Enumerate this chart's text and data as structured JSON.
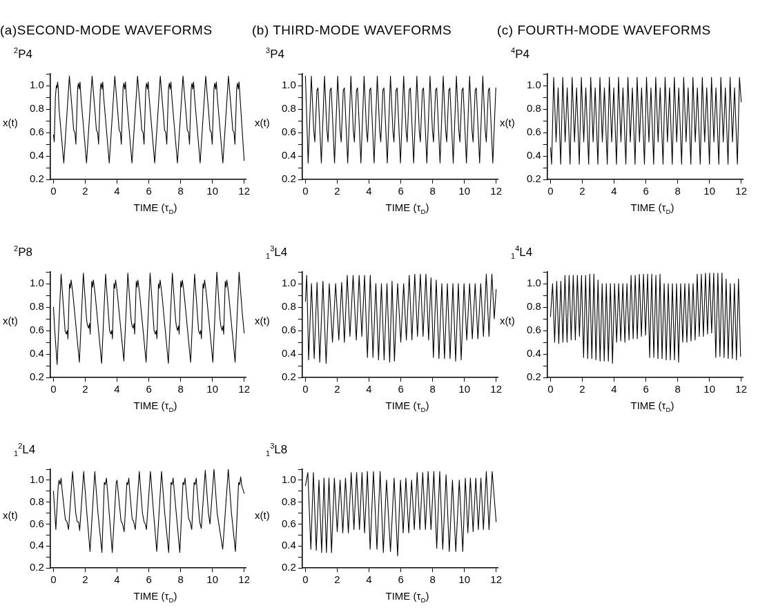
{
  "chart_data": [
    {
      "type": "line",
      "title": "(a)SECOND-MODE WAVEFORMS",
      "subtitle": "$^{2}$P4",
      "xlabel": "TIME (τ$_{D}$)",
      "ylabel": "x(t)",
      "xlim": [
        -0.2,
        12.1
      ],
      "ylim": [
        0.2,
        1.1
      ],
      "xticks": [
        0,
        2,
        4,
        6,
        8,
        10,
        12
      ],
      "yticks": [
        {
          "value": 0.2,
          "label": "0.2"
        },
        {
          "value": 0.3,
          "label": null
        },
        {
          "value": 0.4,
          "label": "0.4"
        },
        {
          "value": 0.5,
          "label": null
        },
        {
          "value": 0.6,
          "label": "0.6"
        },
        {
          "value": 0.7,
          "label": null
        },
        {
          "value": 0.8,
          "label": "0.8"
        },
        {
          "value": 0.9,
          "label": null
        },
        {
          "value": 1.0,
          "label": "1.0"
        },
        {
          "value": 1.1,
          "label": null
        }
      ],
      "series": [
        {
          "color": "#000000",
          "x": [
            0,
            0.05,
            0.12,
            0.18,
            0.22,
            0.26,
            0.3,
            0.35,
            0.65,
            1.0,
            1.2,
            1.27,
            1.35,
            1.41,
            1.52,
            1.57,
            1.62,
            1.67,
            1.73,
            2.08,
            2.43,
            2.63,
            2.7,
            2.78,
            2.84,
            2.95,
            3.0,
            3.05,
            3.1,
            3.16,
            3.51,
            3.86,
            4.06,
            4.13,
            4.21,
            4.27,
            4.38,
            4.43,
            4.48,
            4.53,
            4.59,
            4.94,
            5.29,
            5.49,
            5.56,
            5.64,
            5.7,
            5.81,
            5.86,
            5.91,
            5.96,
            6.02,
            6.37,
            6.72,
            6.92,
            6.99,
            7.07,
            7.13,
            7.24,
            7.29,
            7.34,
            7.39,
            7.45,
            7.8,
            8.15,
            8.35,
            8.42,
            8.5,
            8.56,
            8.67,
            8.72,
            8.77,
            8.82,
            8.88,
            9.23,
            9.58,
            9.78,
            9.85,
            9.93,
            9.99,
            10.1,
            10.15,
            10.2,
            10.25,
            10.31,
            10.66,
            11.01,
            11.21,
            11.28,
            11.36,
            11.42,
            11.53,
            11.58,
            11.63,
            11.68,
            11.74,
            12.0
          ],
          "values": [
            0.58,
            0.52,
            0.9,
            1.0,
            0.98,
            1.03,
            0.98,
            0.8,
            0.34,
            1.08,
            0.75,
            0.62,
            0.6,
            0.5,
            0.98,
            1.02,
            0.97,
            1.03,
            0.9,
            0.34,
            1.08,
            0.75,
            0.62,
            0.6,
            0.5,
            0.98,
            1.02,
            0.97,
            1.03,
            0.9,
            0.34,
            1.08,
            0.75,
            0.62,
            0.6,
            0.5,
            0.98,
            1.02,
            0.97,
            1.03,
            0.9,
            0.34,
            1.08,
            0.75,
            0.62,
            0.6,
            0.5,
            0.98,
            1.02,
            0.97,
            1.03,
            0.9,
            0.34,
            1.08,
            0.75,
            0.62,
            0.6,
            0.5,
            0.98,
            1.02,
            0.97,
            1.03,
            0.9,
            0.34,
            1.08,
            0.75,
            0.62,
            0.6,
            0.5,
            0.98,
            1.02,
            0.97,
            1.03,
            0.9,
            0.34,
            1.08,
            0.75,
            0.62,
            0.6,
            0.5,
            0.98,
            1.02,
            0.97,
            1.03,
            0.9,
            0.34,
            1.08,
            0.75,
            0.62,
            0.6,
            0.5,
            0.98,
            1.02,
            0.97,
            1.03,
            0.9,
            0.36
          ]
        }
      ]
    },
    {
      "type": "line",
      "subtitle": "$^{2}$P8",
      "xlabel": "TIME (τ$_{D}$)",
      "ylabel": "x(t)",
      "xlim": [
        -0.2,
        12.1
      ],
      "ylim": [
        0.2,
        1.1
      ],
      "xticks": [
        0,
        2,
        4,
        6,
        8,
        10,
        12
      ],
      "yticks": [
        {
          "value": 0.2,
          "label": "0.2"
        },
        {
          "value": 0.3,
          "label": null
        },
        {
          "value": 0.4,
          "label": "0.4"
        },
        {
          "value": 0.5,
          "label": null
        },
        {
          "value": 0.6,
          "label": "0.6"
        },
        {
          "value": 0.7,
          "label": null
        },
        {
          "value": 0.8,
          "label": "0.8"
        },
        {
          "value": 0.9,
          "label": null
        },
        {
          "value": 1.0,
          "label": "1.0"
        },
        {
          "value": 1.1,
          "label": null
        }
      ],
      "series": [
        {
          "color": "#000000",
          "x": [
            0,
            0.08,
            0.23,
            0.48,
            0.68,
            0.73,
            0.81,
            0.87,
            0.91,
            1.01,
            1.06,
            1.11,
            1.17,
            1.23,
            1.63,
            1.88,
            2.08,
            2.13,
            2.21,
            2.27,
            2.31,
            2.41,
            2.46,
            2.51,
            2.57,
            2.63,
            3.03,
            3.28,
            3.48,
            3.53,
            3.61,
            3.67,
            3.71,
            3.81,
            3.86,
            3.91,
            3.97,
            4.03,
            4.43,
            4.68,
            4.88,
            4.93,
            5.01,
            5.07,
            5.11,
            5.21,
            5.26,
            5.31,
            5.37,
            5.43,
            5.83,
            6.08,
            6.28,
            6.33,
            6.41,
            6.47,
            6.51,
            6.61,
            6.66,
            6.71,
            6.77,
            6.83,
            7.23,
            7.48,
            7.68,
            7.73,
            7.81,
            7.87,
            7.91,
            8.01,
            8.06,
            8.11,
            8.17,
            8.23,
            8.63,
            8.88,
            9.08,
            9.13,
            9.21,
            9.27,
            9.31,
            9.41,
            9.46,
            9.51,
            9.57,
            9.63,
            10.03,
            10.28,
            10.48,
            10.53,
            10.61,
            10.67,
            10.71,
            10.81,
            10.86,
            10.91,
            10.97,
            11.03,
            11.43,
            11.68,
            11.88,
            12.0
          ],
          "values": [
            0.8,
            0.6,
            0.31,
            1.08,
            0.7,
            0.6,
            0.57,
            0.6,
            0.53,
            1.0,
            0.96,
            1.03,
            0.97,
            0.9,
            0.33,
            1.09,
            0.7,
            0.65,
            0.62,
            0.66,
            0.57,
            1.02,
            0.97,
            1.03,
            0.97,
            0.9,
            0.32,
            1.08,
            0.7,
            0.6,
            0.57,
            0.6,
            0.53,
            1.0,
            0.96,
            1.03,
            0.97,
            0.9,
            0.34,
            1.09,
            0.7,
            0.65,
            0.62,
            0.66,
            0.57,
            1.02,
            0.97,
            1.03,
            0.97,
            0.9,
            0.33,
            1.09,
            0.7,
            0.6,
            0.57,
            0.6,
            0.53,
            1.0,
            0.96,
            1.03,
            0.97,
            0.9,
            0.32,
            1.09,
            0.7,
            0.64,
            0.6,
            0.64,
            0.57,
            1.02,
            0.97,
            1.03,
            0.97,
            0.9,
            0.33,
            1.08,
            0.7,
            0.6,
            0.57,
            0.6,
            0.53,
            1.0,
            0.96,
            1.03,
            0.97,
            0.9,
            0.33,
            1.1,
            0.7,
            0.64,
            0.6,
            0.64,
            0.57,
            1.02,
            0.97,
            1.03,
            0.97,
            0.9,
            0.33,
            1.1,
            0.75,
            0.58
          ]
        }
      ]
    },
    {
      "type": "line",
      "subtitle": "$_{1}$$^{2}$L4",
      "xlabel": "TIME (τ$_{D}$)",
      "ylabel": "x(t)",
      "xlim": [
        -0.2,
        12.1
      ],
      "ylim": [
        0.2,
        1.1
      ],
      "xticks": [
        0,
        2,
        4,
        6,
        8,
        10,
        12
      ],
      "yticks": [
        {
          "value": 0.2,
          "label": "0.2"
        },
        {
          "value": 0.3,
          "label": null
        },
        {
          "value": 0.4,
          "label": "0.4"
        },
        {
          "value": 0.5,
          "label": null
        },
        {
          "value": 0.6,
          "label": "0.6"
        },
        {
          "value": 0.7,
          "label": null
        },
        {
          "value": 0.8,
          "label": "0.8"
        },
        {
          "value": 0.9,
          "label": null
        },
        {
          "value": 1.0,
          "label": "1.0"
        },
        {
          "value": 1.1,
          "label": null
        }
      ],
      "series": [
        {
          "color": "#000000",
          "x": [
            0,
            0.15,
            0.3,
            0.35,
            0.42,
            0.48,
            0.55,
            0.75,
            0.85,
            0.95,
            1.2,
            1.4,
            1.5,
            1.58,
            1.65,
            1.9,
            2.1,
            2.3,
            2.6,
            2.8,
            3.05,
            3.2,
            3.27,
            3.33,
            3.4,
            3.7,
            3.95,
            4.0,
            4.1,
            4.25,
            4.35,
            4.45,
            4.62,
            4.68,
            4.74,
            4.8,
            4.95,
            5.05,
            5.15,
            5.4,
            5.6,
            5.7,
            5.78,
            5.85,
            6.1,
            6.3,
            6.5,
            6.8,
            7.0,
            7.25,
            7.4,
            7.47,
            7.53,
            7.6,
            7.95,
            8.15,
            8.22,
            8.28,
            8.35,
            8.5,
            8.6,
            8.7,
            8.85,
            8.92,
            8.98,
            9.05,
            9.2,
            9.3,
            9.55,
            9.75,
            9.85,
            10.1,
            10.3,
            10.65,
            11.0,
            11.2,
            11.45,
            11.65,
            11.72,
            11.78,
            11.85,
            12.0
          ],
          "values": [
            0.9,
            0.55,
            0.95,
            1.0,
            0.96,
            1.02,
            0.9,
            0.64,
            0.62,
            0.55,
            1.08,
            0.7,
            0.62,
            0.62,
            0.54,
            1.08,
            0.7,
            0.35,
            1.08,
            0.7,
            0.34,
            0.98,
            0.96,
            1.02,
            0.9,
            0.34,
            0.98,
            1.0,
            0.85,
            0.63,
            0.6,
            0.53,
            0.98,
            0.96,
            1.02,
            0.9,
            0.65,
            0.62,
            0.55,
            1.08,
            0.7,
            0.62,
            0.6,
            0.55,
            1.08,
            0.7,
            0.35,
            1.08,
            0.7,
            0.34,
            0.98,
            0.96,
            1.02,
            0.9,
            0.34,
            0.98,
            0.96,
            1.02,
            0.9,
            0.65,
            0.62,
            0.55,
            0.98,
            0.96,
            1.02,
            0.88,
            0.62,
            0.56,
            1.09,
            0.7,
            0.6,
            1.1,
            0.7,
            0.37,
            1.1,
            0.7,
            0.35,
            0.98,
            0.96,
            1.03,
            0.95,
            0.88
          ]
        }
      ]
    },
    {
      "type": "line",
      "title": "(b) THIRD-MODE WAVEFORMS",
      "subtitle": "$^{3}$P4",
      "xlabel": "TIME (τ$_{D}$)",
      "ylabel": "x(t)",
      "xlim": [
        -0.2,
        12.1
      ],
      "ylim": [
        0.2,
        1.1
      ],
      "xticks": [
        0,
        2,
        4,
        6,
        8,
        10,
        12
      ],
      "yticks": [
        {
          "value": 0.2,
          "label": "0.2"
        },
        {
          "value": 0.3,
          "label": null
        },
        {
          "value": 0.4,
          "label": "0.4"
        },
        {
          "value": 0.5,
          "label": null
        },
        {
          "value": 0.6,
          "label": "0.6"
        },
        {
          "value": 0.7,
          "label": null
        },
        {
          "value": 0.8,
          "label": "0.8"
        },
        {
          "value": 0.9,
          "label": null
        },
        {
          "value": 1.0,
          "label": "1.0"
        },
        {
          "value": 1.1,
          "label": null
        }
      ],
      "series": [
        {
          "color": "#000000",
          "x": [
            0,
            0.17,
            0.37,
            0.52,
            0.59,
            0.72,
            0.79,
            1.0,
            1.2,
            1.35,
            1.42,
            1.55,
            1.62,
            1.83,
            2.03,
            2.18,
            2.25,
            2.38,
            2.45,
            2.66,
            2.86,
            3.01,
            3.08,
            3.21,
            3.28,
            3.49,
            3.69,
            3.84,
            3.91,
            4.04,
            4.11,
            4.32,
            4.52,
            4.67,
            4.74,
            4.87,
            4.94,
            5.15,
            5.35,
            5.5,
            5.57,
            5.7,
            5.77,
            5.98,
            6.18,
            6.33,
            6.4,
            6.53,
            6.6,
            6.81,
            7.01,
            7.16,
            7.23,
            7.36,
            7.43,
            7.64,
            7.84,
            7.99,
            8.06,
            8.19,
            8.26,
            8.47,
            8.67,
            8.82,
            8.89,
            9.02,
            9.09,
            9.3,
            9.5,
            9.65,
            9.72,
            9.85,
            9.92,
            10.13,
            10.33,
            10.48,
            10.55,
            10.68,
            10.75,
            10.96,
            11.16,
            11.31,
            11.38,
            11.51,
            11.58,
            11.79,
            11.98
          ],
          "values": [
            1.08,
            0.34,
            1.08,
            0.62,
            0.52,
            0.96,
            0.98,
            0.34,
            1.08,
            0.62,
            0.52,
            0.96,
            0.98,
            0.34,
            1.08,
            0.62,
            0.52,
            0.96,
            0.98,
            0.34,
            1.08,
            0.62,
            0.52,
            0.96,
            0.98,
            0.34,
            1.08,
            0.62,
            0.52,
            0.96,
            0.98,
            0.34,
            1.08,
            0.62,
            0.52,
            0.96,
            0.98,
            0.34,
            1.08,
            0.62,
            0.52,
            0.96,
            0.98,
            0.34,
            1.08,
            0.62,
            0.52,
            0.96,
            0.98,
            0.34,
            1.08,
            0.62,
            0.52,
            0.96,
            0.98,
            0.34,
            1.08,
            0.62,
            0.52,
            0.96,
            0.98,
            0.34,
            1.08,
            0.62,
            0.52,
            0.96,
            0.98,
            0.34,
            1.08,
            0.62,
            0.52,
            0.96,
            0.98,
            0.34,
            1.08,
            0.62,
            0.52,
            0.96,
            0.98,
            0.34,
            1.08,
            0.62,
            0.52,
            0.96,
            0.98,
            0.34,
            0.98
          ]
        }
      ]
    },
    {
      "type": "line",
      "subtitle": "$_{1}$$^{3}$L4",
      "xlabel": "TIME (τ$_{D}$)",
      "ylabel": "x(t)",
      "xlim": [
        -0.2,
        12.1
      ],
      "ylim": [
        0.2,
        1.1
      ],
      "xticks": [
        0,
        2,
        4,
        6,
        8,
        10,
        12
      ],
      "yticks": [
        {
          "value": 0.2,
          "label": "0.2"
        },
        {
          "value": 0.3,
          "label": null
        },
        {
          "value": 0.4,
          "label": "0.4"
        },
        {
          "value": 0.5,
          "label": null
        },
        {
          "value": 0.6,
          "label": "0.6"
        },
        {
          "value": 0.7,
          "label": null
        },
        {
          "value": 0.8,
          "label": "0.8"
        },
        {
          "value": 0.9,
          "label": null
        },
        {
          "value": 1.0,
          "label": "1.0"
        },
        {
          "value": 1.1,
          "label": null
        }
      ],
      "series": [
        {
          "color": "#000000",
          "x": [
            0,
            0.08,
            0.2,
            0.38,
            0.55,
            0.73,
            0.9,
            1.1,
            1.3,
            1.5,
            1.7,
            1.9,
            2.1,
            2.28,
            2.45,
            2.63,
            2.8,
            3.0,
            3.2,
            3.38,
            3.55,
            3.72,
            3.9,
            4.08,
            4.25,
            4.43,
            4.6,
            4.78,
            4.95,
            5.13,
            5.3,
            5.45,
            5.6,
            5.8,
            6.0,
            6.18,
            6.35,
            6.53,
            6.7,
            6.88,
            7.05,
            7.23,
            7.4,
            7.58,
            7.75,
            7.9,
            8.05,
            8.23,
            8.4,
            8.58,
            8.75,
            8.93,
            9.1,
            9.28,
            9.45,
            9.62,
            9.8,
            9.98,
            10.15,
            10.33,
            10.5,
            10.68,
            10.85,
            11.03,
            11.2,
            11.38,
            11.55,
            11.73,
            11.88,
            12.0
          ],
          "values": [
            0.85,
            1.07,
            0.35,
            1.0,
            0.36,
            1.01,
            0.33,
            1.02,
            0.32,
            1.0,
            0.5,
            1.0,
            0.52,
            1.01,
            0.5,
            1.07,
            0.55,
            1.07,
            0.52,
            1.07,
            0.55,
            1.07,
            0.37,
            1.07,
            0.37,
            1.0,
            0.35,
            1.0,
            0.35,
            1.0,
            0.33,
            1.02,
            0.34,
            1.0,
            0.5,
            1.0,
            0.52,
            1.07,
            0.52,
            1.08,
            0.55,
            1.08,
            0.55,
            1.08,
            0.52,
            1.05,
            0.37,
            1.03,
            0.36,
            1.0,
            0.36,
            1.0,
            0.36,
            1.0,
            0.34,
            1.0,
            0.35,
            1.0,
            0.52,
            1.0,
            0.53,
            1.0,
            0.53,
            1.0,
            0.55,
            1.08,
            0.55,
            1.08,
            0.7,
            0.95
          ]
        }
      ]
    },
    {
      "type": "line",
      "subtitle": "$_{1}$$^{3}$L8",
      "xlabel": "TIME (τ$_{D}$)",
      "ylabel": "x(t)",
      "xlim": [
        -0.2,
        12.1
      ],
      "ylim": [
        0.2,
        1.1
      ],
      "xticks": [
        0,
        2,
        4,
        6,
        8,
        10,
        12
      ],
      "yticks": [
        {
          "value": 0.2,
          "label": "0.2"
        },
        {
          "value": 0.3,
          "label": null
        },
        {
          "value": 0.4,
          "label": "0.4"
        },
        {
          "value": 0.5,
          "label": null
        },
        {
          "value": 0.6,
          "label": "0.6"
        },
        {
          "value": 0.7,
          "label": null
        },
        {
          "value": 0.8,
          "label": "0.8"
        },
        {
          "value": 0.9,
          "label": null
        },
        {
          "value": 1.0,
          "label": "1.0"
        },
        {
          "value": 1.1,
          "label": null
        }
      ],
      "series": [
        {
          "color": "#000000",
          "x": [
            0,
            0.15,
            0.34,
            0.5,
            0.68,
            0.85,
            1.02,
            1.17,
            1.32,
            1.48,
            1.64,
            1.82,
            2.0,
            2.18,
            2.35,
            2.52,
            2.7,
            2.88,
            3.05,
            3.22,
            3.4,
            3.56,
            3.72,
            3.9,
            4.07,
            4.28,
            4.5,
            4.7,
            4.9,
            5.1,
            5.35,
            5.58,
            5.8,
            5.98,
            6.15,
            6.32,
            6.5,
            6.68,
            6.85,
            7.03,
            7.2,
            7.38,
            7.55,
            7.72,
            7.9,
            8.08,
            8.26,
            8.45,
            8.64,
            8.85,
            9.05,
            9.25,
            9.46,
            9.68,
            9.9,
            10.06,
            10.22,
            10.38,
            10.55,
            10.72,
            10.88,
            11.04,
            11.2,
            11.38,
            11.55,
            11.75,
            12.0
          ],
          "values": [
            0.95,
            1.07,
            0.37,
            1.07,
            0.36,
            1.0,
            0.34,
            1.02,
            0.34,
            1.02,
            0.34,
            1.02,
            0.53,
            1.0,
            0.52,
            1.02,
            0.52,
            1.07,
            0.55,
            1.07,
            0.55,
            1.07,
            0.52,
            1.08,
            0.37,
            1.08,
            0.37,
            1.08,
            0.34,
            1.0,
            0.35,
            1.02,
            0.31,
            1.0,
            0.52,
            1.02,
            0.52,
            1.0,
            0.55,
            1.07,
            0.55,
            1.07,
            0.55,
            1.08,
            0.55,
            1.08,
            0.38,
            1.08,
            0.37,
            1.05,
            0.35,
            1.0,
            0.35,
            1.0,
            0.35,
            1.02,
            0.52,
            1.02,
            0.53,
            1.02,
            0.55,
            1.02,
            0.55,
            1.08,
            0.55,
            1.08,
            0.62
          ]
        }
      ]
    },
    {
      "type": "line",
      "title": "(c) FOURTH-MODE WAVEFORMS",
      "subtitle": "$^{4}$P4",
      "xlabel": "TIME (τ$_{D}$)",
      "ylabel": "x(t)",
      "xlim": [
        -0.2,
        12.1
      ],
      "ylim": [
        0.2,
        1.1
      ],
      "xticks": [
        0,
        2,
        4,
        6,
        8,
        10,
        12
      ],
      "yticks": [
        {
          "value": 0.2,
          "label": "0.2"
        },
        {
          "value": 0.3,
          "label": null
        },
        {
          "value": 0.4,
          "label": "0.4"
        },
        {
          "value": 0.5,
          "label": null
        },
        {
          "value": 0.6,
          "label": "0.6"
        },
        {
          "value": 0.7,
          "label": null
        },
        {
          "value": 0.8,
          "label": "0.8"
        },
        {
          "value": 0.9,
          "label": null
        },
        {
          "value": 1.0,
          "label": "1.0"
        },
        {
          "value": 1.1,
          "label": null
        }
      ],
      "series": [
        {
          "color": "#000000",
          "x": [
            0,
            0.07,
            0.2,
            0.35,
            0.48,
            0.64,
            0.77,
            0.92,
            1.05,
            1.23,
            1.36,
            1.51,
            1.64,
            1.81,
            1.94,
            2.09,
            2.22,
            2.4,
            2.53,
            2.68,
            2.81,
            2.98,
            3.11,
            3.26,
            3.39,
            3.57,
            3.7,
            3.85,
            3.98,
            4.15,
            4.28,
            4.43,
            4.56,
            4.74,
            4.87,
            5.02,
            5.15,
            5.32,
            5.45,
            5.6,
            5.73,
            5.91,
            6.04,
            6.19,
            6.32,
            6.49,
            6.62,
            6.77,
            6.9,
            7.08,
            7.21,
            7.36,
            7.49,
            7.66,
            7.79,
            7.94,
            8.07,
            8.25,
            8.38,
            8.53,
            8.66,
            8.83,
            8.96,
            9.11,
            9.24,
            9.42,
            9.55,
            9.7,
            9.83,
            10.0,
            10.13,
            10.28,
            10.41,
            10.59,
            10.72,
            10.87,
            11.0,
            11.17,
            11.3,
            11.45,
            11.58,
            11.76,
            11.89,
            12.0
          ],
          "values": [
            0.47,
            0.33,
            1.07,
            0.52,
            0.98,
            0.33,
            1.07,
            0.52,
            0.98,
            0.33,
            1.07,
            0.52,
            0.98,
            0.33,
            1.07,
            0.52,
            0.98,
            0.33,
            1.07,
            0.52,
            0.98,
            0.33,
            1.07,
            0.52,
            0.98,
            0.33,
            1.07,
            0.52,
            0.98,
            0.33,
            1.07,
            0.52,
            0.98,
            0.33,
            1.07,
            0.52,
            0.98,
            0.33,
            1.07,
            0.52,
            0.98,
            0.33,
            1.07,
            0.52,
            0.98,
            0.33,
            1.07,
            0.52,
            0.98,
            0.33,
            1.07,
            0.52,
            0.98,
            0.33,
            1.07,
            0.52,
            0.98,
            0.33,
            1.07,
            0.52,
            0.98,
            0.33,
            1.07,
            0.52,
            0.98,
            0.33,
            1.07,
            0.52,
            0.98,
            0.33,
            1.07,
            0.52,
            0.98,
            0.33,
            1.07,
            0.52,
            0.98,
            0.33,
            1.07,
            0.52,
            0.98,
            0.33,
            1.07,
            0.86
          ]
        }
      ]
    },
    {
      "type": "line",
      "subtitle": "$_{1}$$^{4}$L4",
      "xlabel": "TIME (τ$_{D}$)",
      "ylabel": "x(t)",
      "xlim": [
        -0.2,
        12.1
      ],
      "ylim": [
        0.2,
        1.1
      ],
      "xticks": [
        0,
        2,
        4,
        6,
        8,
        10,
        12
      ],
      "yticks": [
        {
          "value": 0.2,
          "label": "0.2"
        },
        {
          "value": 0.3,
          "label": null
        },
        {
          "value": 0.4,
          "label": "0.4"
        },
        {
          "value": 0.5,
          "label": null
        },
        {
          "value": 0.6,
          "label": "0.6"
        },
        {
          "value": 0.7,
          "label": null
        },
        {
          "value": 0.8,
          "label": "0.8"
        },
        {
          "value": 0.9,
          "label": null
        },
        {
          "value": 1.0,
          "label": "1.0"
        },
        {
          "value": 1.1,
          "label": null
        }
      ],
      "series": [
        {
          "color": "#000000",
          "x": [
            0,
            0.13,
            0.26,
            0.39,
            0.52,
            0.65,
            0.78,
            0.91,
            1.04,
            1.17,
            1.3,
            1.43,
            1.56,
            1.69,
            1.82,
            1.95,
            2.08,
            2.21,
            2.34,
            2.47,
            2.6,
            2.73,
            2.86,
            2.99,
            3.12,
            3.25,
            3.38,
            3.51,
            3.64,
            3.77,
            3.9,
            4.03,
            4.16,
            4.29,
            4.42,
            4.55,
            4.68,
            4.81,
            4.94,
            5.07,
            5.2,
            5.33,
            5.46,
            5.59,
            5.72,
            5.85,
            5.98,
            6.11,
            6.24,
            6.37,
            6.5,
            6.63,
            6.76,
            6.89,
            7.02,
            7.15,
            7.28,
            7.41,
            7.54,
            7.67,
            7.8,
            7.93,
            8.06,
            8.19,
            8.32,
            8.45,
            8.58,
            8.71,
            8.84,
            8.97,
            9.1,
            9.23,
            9.36,
            9.49,
            9.62,
            9.75,
            9.88,
            10.01,
            10.14,
            10.27,
            10.4,
            10.53,
            10.66,
            10.79,
            10.92,
            11.05,
            11.18,
            11.31,
            11.44,
            11.57,
            11.7,
            11.83,
            11.96
          ],
          "values": [
            0.72,
            1.0,
            0.5,
            1.02,
            0.49,
            1.02,
            0.5,
            1.07,
            0.5,
            1.07,
            0.52,
            1.07,
            0.52,
            1.07,
            0.55,
            1.07,
            0.37,
            1.07,
            0.36,
            1.08,
            0.36,
            1.08,
            0.35,
            1.03,
            0.34,
            1.0,
            0.34,
            1.0,
            0.34,
            1.0,
            0.32,
            1.0,
            0.5,
            1.0,
            0.51,
            1.0,
            0.5,
            1.0,
            0.52,
            1.07,
            0.53,
            1.07,
            0.53,
            1.08,
            0.55,
            1.08,
            0.56,
            1.08,
            0.37,
            1.08,
            0.37,
            1.07,
            0.36,
            1.08,
            0.36,
            1.0,
            0.35,
            1.0,
            0.35,
            1.0,
            0.35,
            1.0,
            0.33,
            1.0,
            0.5,
            1.0,
            0.5,
            1.0,
            0.51,
            1.0,
            0.52,
            1.08,
            0.55,
            1.08,
            0.55,
            1.09,
            0.57,
            1.09,
            0.58,
            1.09,
            0.37,
            1.09,
            0.38,
            1.09,
            0.37,
            1.04,
            0.36,
            1.0,
            0.36,
            1.0,
            0.35,
            1.04,
            0.38
          ]
        }
      ]
    }
  ]
}
